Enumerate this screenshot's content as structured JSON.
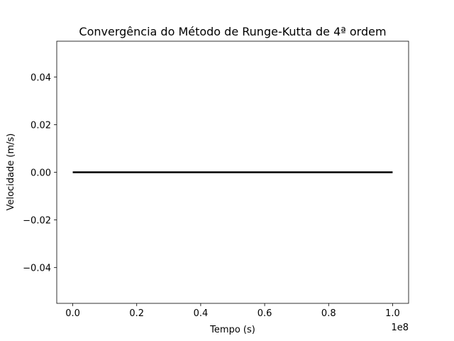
{
  "chart_data": {
    "type": "line",
    "title": "Convergência do Método de Runge-Kutta de 4ª ordem",
    "xlabel": "Tempo (s)",
    "ylabel": "Velocidade (m/s)",
    "x_offset_label": "1e8",
    "xlim": [
      -5000000,
      105000000
    ],
    "ylim": [
      -0.055,
      0.055
    ],
    "x_ticks": [
      0,
      20000000,
      40000000,
      60000000,
      80000000,
      100000000
    ],
    "x_tick_labels": [
      "0.0",
      "0.2",
      "0.4",
      "0.6",
      "0.8",
      "1.0"
    ],
    "y_ticks": [
      -0.04,
      -0.02,
      0.0,
      0.02,
      0.04
    ],
    "y_tick_labels": [
      "−0.04",
      "−0.02",
      "0.00",
      "0.02",
      "0.04"
    ],
    "grid": false,
    "series": [
      {
        "color": "#000000",
        "x": [
          0,
          100000000
        ],
        "y": [
          0.0,
          0.0
        ]
      }
    ]
  }
}
